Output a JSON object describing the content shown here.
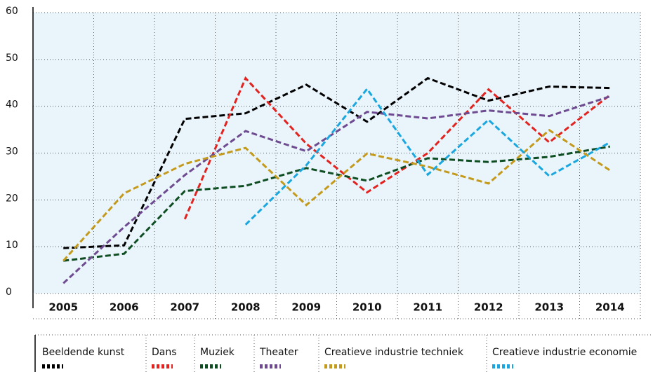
{
  "chart_data": {
    "type": "line",
    "categories": [
      "2005",
      "2006",
      "2007",
      "2008",
      "2009",
      "2010",
      "2011",
      "2012",
      "2013",
      "2014"
    ],
    "ylim": [
      0,
      60
    ],
    "yticks": [
      0,
      10,
      20,
      30,
      40,
      50,
      60
    ],
    "grid": true,
    "series": [
      {
        "name": "Beeldende kunst",
        "color": "#000000",
        "values": [
          9.7,
          10.3,
          37.3,
          38.5,
          44.6,
          36.7,
          46,
          41.2,
          44.2,
          43.9
        ]
      },
      {
        "name": "Dans",
        "color": "#e3231f",
        "values": [
          null,
          null,
          15.9,
          46,
          32,
          21.6,
          30,
          43.6,
          32.3,
          42.4
        ]
      },
      {
        "name": "Muziek",
        "color": "#0e4d22",
        "values": [
          7,
          8.5,
          21.9,
          23,
          26.8,
          24.1,
          28.9,
          28.1,
          29.2,
          31.4
        ]
      },
      {
        "name": "Theater",
        "color": "#6e4b91",
        "values": [
          2.2,
          14.2,
          25.3,
          34.7,
          30.4,
          38.8,
          37.4,
          39.1,
          37.9,
          42.1
        ]
      },
      {
        "name": "Creatieve industrie techniek",
        "color": "#c39a1c",
        "values": [
          7,
          21.4,
          27.7,
          31.1,
          18.9,
          29.9,
          27.1,
          23.5,
          34.9,
          26.3
        ]
      },
      {
        "name": "Creatieve industrie economie",
        "color": "#1aa6df",
        "values": [
          null,
          null,
          null,
          14.7,
          27.4,
          43.7,
          25.4,
          37.1,
          25.1,
          32.3
        ]
      }
    ]
  }
}
